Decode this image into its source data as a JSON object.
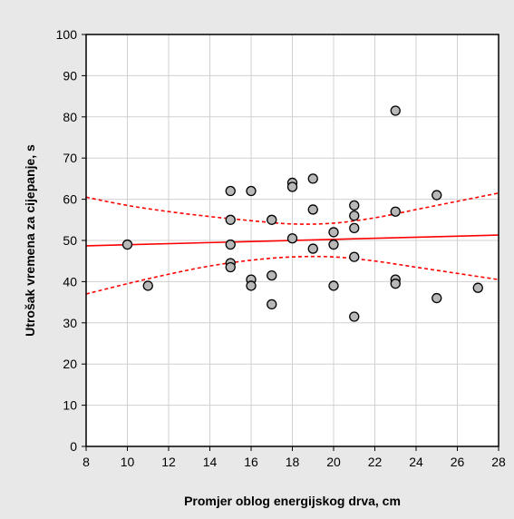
{
  "chart_data": {
    "type": "scatter",
    "xlabel": "Promjer oblog energijskog drva, cm",
    "ylabel": "Utrošak vremena za cijepanje, s",
    "xlim": [
      8,
      28
    ],
    "ylim": [
      0,
      100
    ],
    "x_ticks": [
      8,
      10,
      12,
      14,
      16,
      18,
      20,
      22,
      24,
      26,
      28
    ],
    "y_ticks": [
      0,
      10,
      20,
      30,
      40,
      50,
      60,
      70,
      80,
      90,
      100
    ],
    "grid": true,
    "points": [
      {
        "x": 10,
        "y": 49
      },
      {
        "x": 11,
        "y": 39
      },
      {
        "x": 15,
        "y": 62
      },
      {
        "x": 15,
        "y": 55
      },
      {
        "x": 15,
        "y": 49
      },
      {
        "x": 15,
        "y": 44.5
      },
      {
        "x": 15,
        "y": 43.5
      },
      {
        "x": 16,
        "y": 62
      },
      {
        "x": 16,
        "y": 40.5
      },
      {
        "x": 16,
        "y": 39
      },
      {
        "x": 17,
        "y": 55
      },
      {
        "x": 17,
        "y": 41.5
      },
      {
        "x": 17,
        "y": 34.5
      },
      {
        "x": 18,
        "y": 64
      },
      {
        "x": 18,
        "y": 63
      },
      {
        "x": 18,
        "y": 50.5
      },
      {
        "x": 19,
        "y": 65
      },
      {
        "x": 19,
        "y": 57.5
      },
      {
        "x": 19,
        "y": 48
      },
      {
        "x": 20,
        "y": 52
      },
      {
        "x": 20,
        "y": 49
      },
      {
        "x": 20,
        "y": 39
      },
      {
        "x": 21,
        "y": 58.5
      },
      {
        "x": 21,
        "y": 56
      },
      {
        "x": 21,
        "y": 53
      },
      {
        "x": 21,
        "y": 46
      },
      {
        "x": 21,
        "y": 31.5
      },
      {
        "x": 23,
        "y": 81.5
      },
      {
        "x": 23,
        "y": 57
      },
      {
        "x": 23,
        "y": 40.5
      },
      {
        "x": 23,
        "y": 39.5
      },
      {
        "x": 25,
        "y": 61
      },
      {
        "x": 25,
        "y": 36
      },
      {
        "x": 27,
        "y": 38.5
      }
    ],
    "regression": {
      "x": [
        8,
        28
      ],
      "y": [
        48.7,
        51.3
      ]
    },
    "confidence_upper": {
      "x": [
        8,
        10,
        12,
        14,
        16,
        18,
        20,
        22,
        24,
        26,
        28
      ],
      "y": [
        60.5,
        58.5,
        57.0,
        55.8,
        54.8,
        54.0,
        54.2,
        55.5,
        57.5,
        59.5,
        61.5
      ]
    },
    "confidence_lower": {
      "x": [
        8,
        10,
        12,
        14,
        16,
        18,
        20,
        22,
        24,
        26,
        28
      ],
      "y": [
        37.0,
        39.5,
        41.8,
        43.8,
        45.2,
        46.0,
        46.0,
        45.0,
        43.5,
        42.0,
        40.5
      ]
    },
    "colors": {
      "background": "#e8e8e8",
      "plot_background": "#ffffff",
      "grid": "#d0d0d0",
      "point_fill": "#b8b8b8",
      "point_stroke": "#000000",
      "fit_line": "#ff0000"
    }
  }
}
